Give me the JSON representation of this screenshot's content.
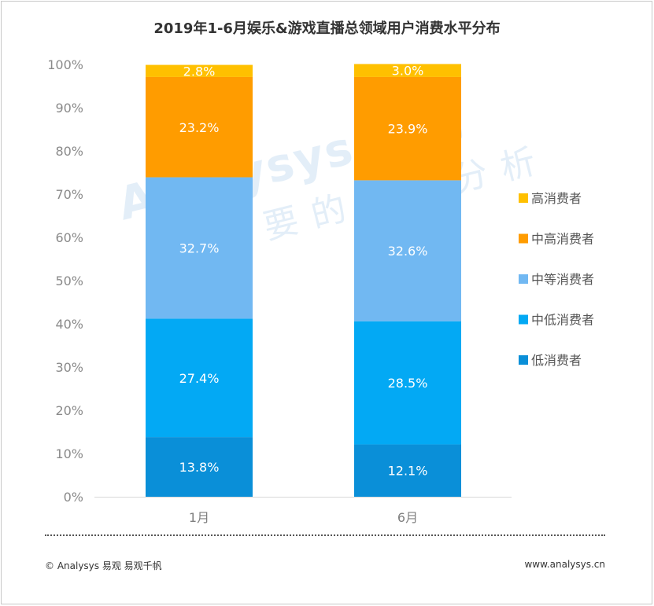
{
  "chart_data": {
    "type": "bar",
    "stacked": true,
    "title": "2019年1-6月娱乐&游戏直播总领域用户消费水平分布",
    "categories": [
      "1月",
      "6月"
    ],
    "series": [
      {
        "name": "低消费者",
        "values": [
          13.8,
          12.1
        ],
        "labels": [
          "13.8%",
          "12.1%"
        ],
        "color": "#0a8fd8"
      },
      {
        "name": "中低消费者",
        "values": [
          27.4,
          28.5
        ],
        "labels": [
          "27.4%",
          "28.5%"
        ],
        "color": "#03a9f4"
      },
      {
        "name": "中等消费者",
        "values": [
          32.7,
          32.6
        ],
        "labels": [
          "32.7%",
          "32.6%"
        ],
        "color": "#71b8f2"
      },
      {
        "name": "中高消费者",
        "values": [
          23.2,
          23.9
        ],
        "labels": [
          "23.2%",
          "23.9%"
        ],
        "color": "#ff9c00"
      },
      {
        "name": "高消费者",
        "values": [
          2.8,
          3.0
        ],
        "labels": [
          "2.8%",
          "3.0%"
        ],
        "color": "#ffc000"
      }
    ],
    "ylim": [
      0,
      100
    ],
    "yticks": [
      "0%",
      "10%",
      "20%",
      "30%",
      "40%",
      "50%",
      "60%",
      "70%",
      "80%",
      "90%",
      "100%"
    ],
    "legend_position": "right",
    "grid": false
  },
  "footer": {
    "copyright": "© Analysys 易观 易观千帆",
    "website": "www.analysys.cn"
  },
  "watermark": {
    "brand": "Analysys 易观",
    "slogan": "你要的数据分析"
  }
}
